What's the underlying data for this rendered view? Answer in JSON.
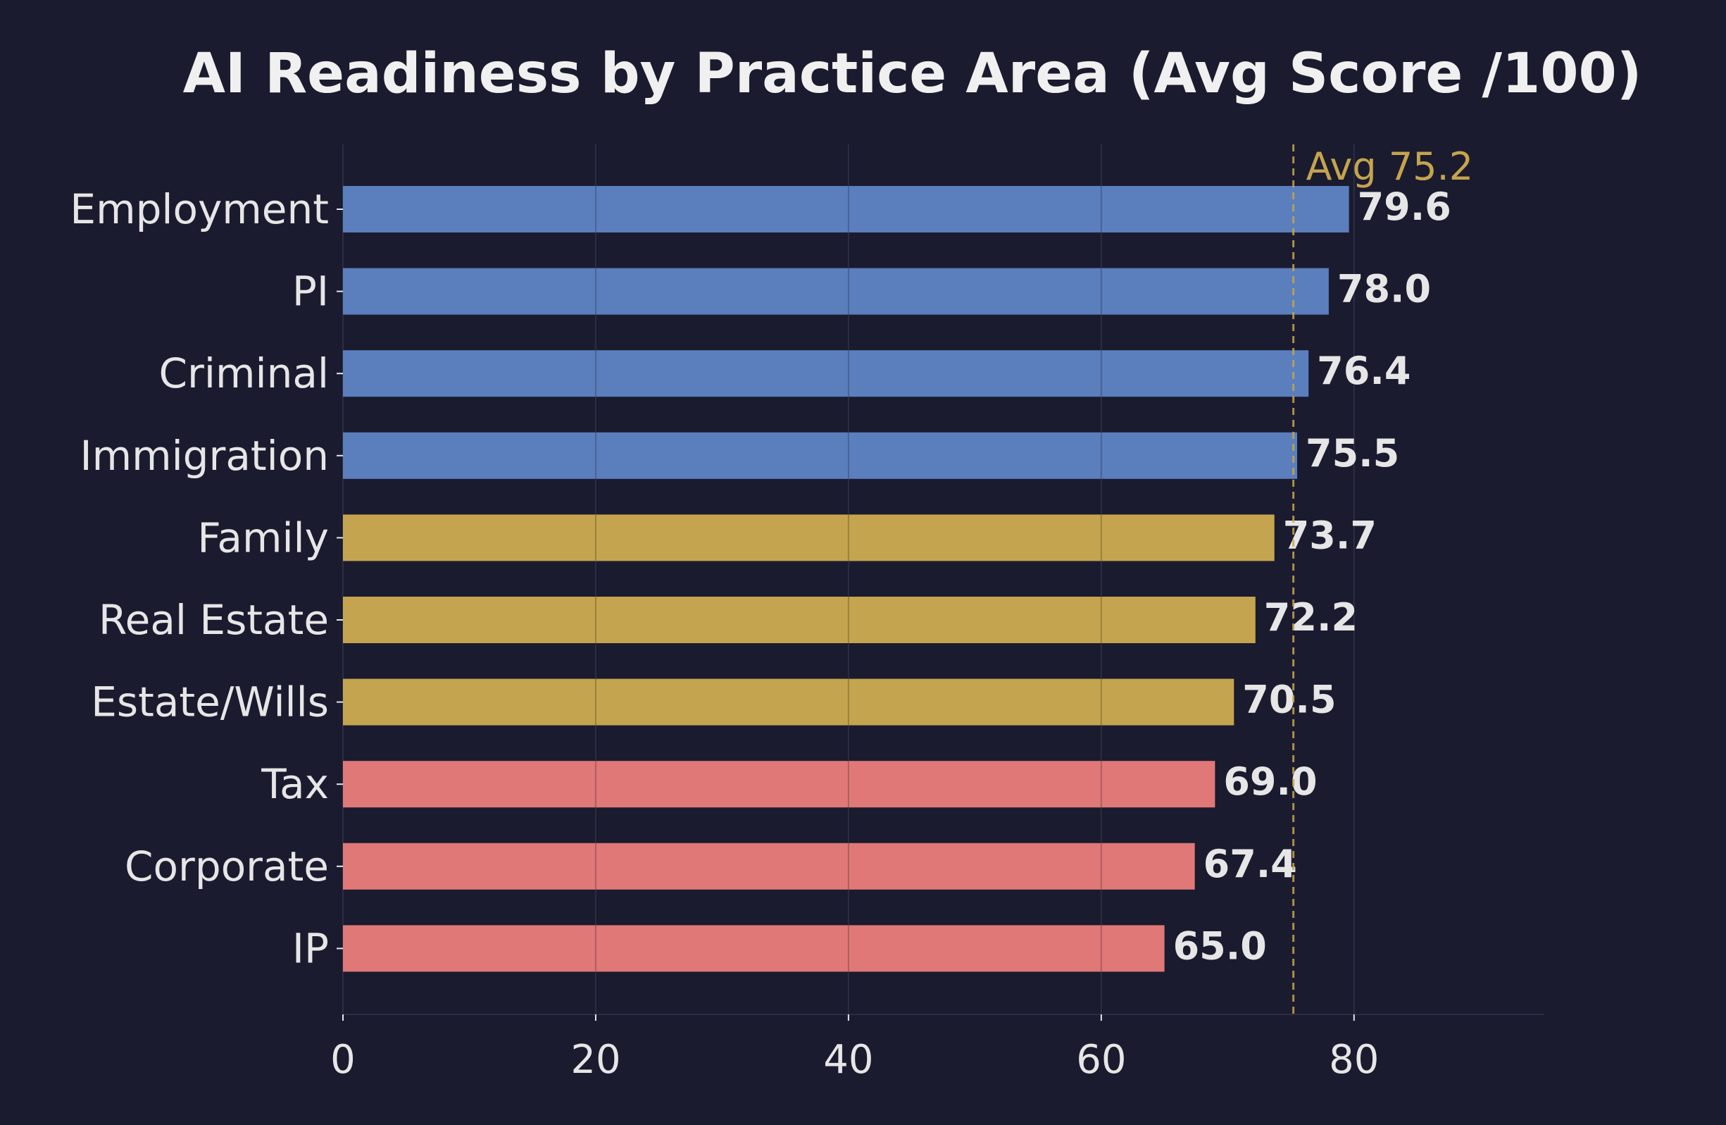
{
  "chart_data": {
    "type": "bar",
    "orientation": "horizontal",
    "title": "AI Readiness by Practice Area (Avg Score /100)",
    "xlabel": "",
    "ylabel": "",
    "categories": [
      "Employment",
      "PI",
      "Criminal",
      "Immigration",
      "Family",
      "Real Estate",
      "Estate/Wills",
      "Tax",
      "Corporate",
      "IP"
    ],
    "values": [
      79.6,
      78.0,
      76.4,
      75.5,
      73.7,
      72.2,
      70.5,
      69.0,
      67.4,
      65.0
    ],
    "value_labels": [
      "79.6",
      "78.0",
      "76.4",
      "75.5",
      "73.7",
      "72.2",
      "70.5",
      "69.0",
      "67.4",
      "65.0"
    ],
    "bar_colors": [
      "#5b7fbd",
      "#5b7fbd",
      "#5b7fbd",
      "#5b7fbd",
      "#c4a44e",
      "#c4a44e",
      "#c4a44e",
      "#e07878",
      "#e07878",
      "#e07878"
    ],
    "xlim": [
      0,
      95
    ],
    "xticks": [
      0,
      20,
      40,
      60,
      80
    ],
    "xtick_labels": [
      "0",
      "20",
      "40",
      "60",
      "80"
    ],
    "grid": "vertical",
    "reference_line": {
      "value": 75.2,
      "label": "Avg 75.2",
      "color": "#c4a44e",
      "style": "dashed"
    },
    "colors": {
      "background": "#1b1b2f",
      "text": "#e6e6e6",
      "grid": "#2c2c44"
    }
  }
}
